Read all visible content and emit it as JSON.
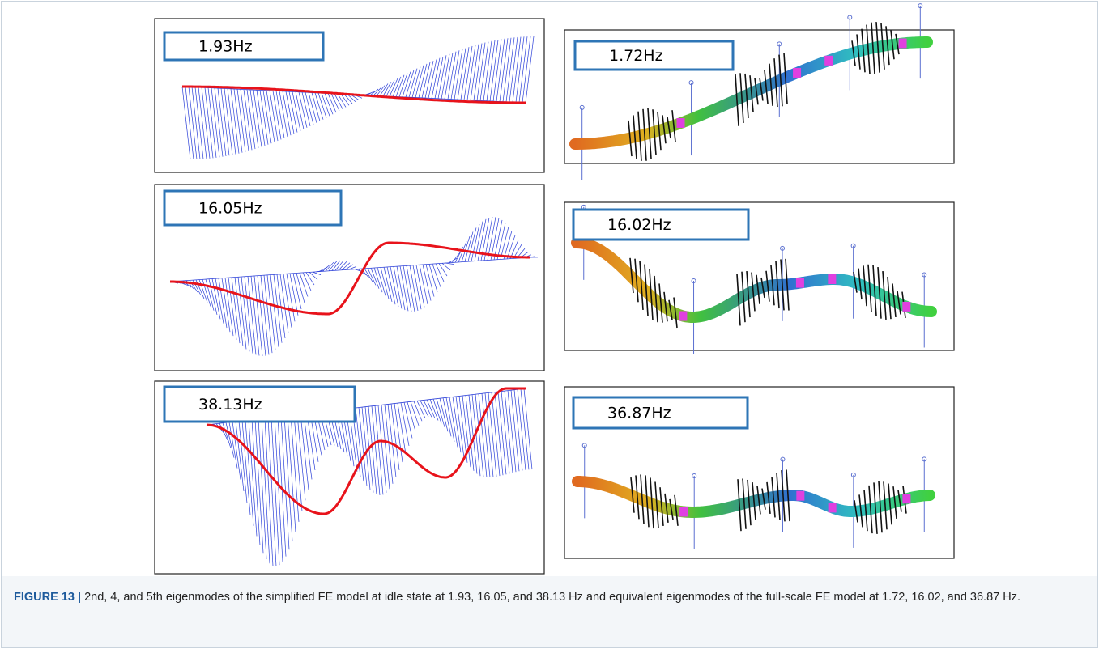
{
  "panels": [
    {
      "label": "1.93Hz"
    },
    {
      "label": "1.72Hz"
    },
    {
      "label": "16.05Hz"
    },
    {
      "label": "16.02Hz"
    },
    {
      "label": "38.13Hz"
    },
    {
      "label": "36.87Hz"
    }
  ],
  "caption": {
    "figure_label": "FIGURE 13 |",
    "text": "2nd, 4, and 5th eigenmodes of the simplified FE model at idle state at 1.93, 16.05, and 38.13 Hz and equivalent eigenmodes of the full-scale FE model at 1.72, 16.02, and 36.87 Hz."
  }
}
